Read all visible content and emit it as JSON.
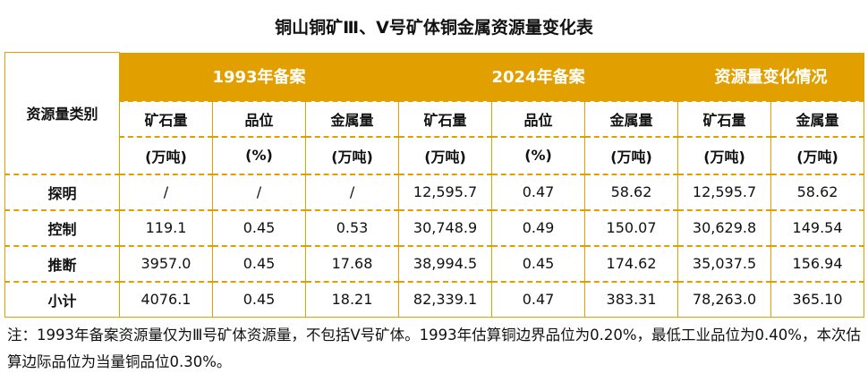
{
  "title": "铜山铜矿Ⅲ、Ⅴ号矿体铜金属资源量变化表",
  "header": {
    "category": "资源量类别",
    "groups": [
      "1993年备案",
      "2024年备案",
      "资源量变化情况"
    ],
    "columns": [
      "矿石量",
      "品位",
      "金属量",
      "矿石量",
      "品位",
      "金属量",
      "矿石量",
      "金属量"
    ],
    "units": [
      "(万吨)",
      "(%)",
      "(万吨)",
      "(万吨)",
      "(%)",
      "(万吨)",
      "(万吨)",
      "(万吨)"
    ]
  },
  "rows": [
    {
      "label": "探明",
      "values": [
        "/",
        "/",
        "/",
        "12,595.7",
        "0.47",
        "58.62",
        "12,595.7",
        "58.62"
      ]
    },
    {
      "label": "控制",
      "values": [
        "119.1",
        "0.45",
        "0.53",
        "30,748.9",
        "0.49",
        "150.07",
        "30,629.8",
        "149.54"
      ]
    },
    {
      "label": "推断",
      "values": [
        "3957.0",
        "0.45",
        "17.68",
        "38,994.5",
        "0.45",
        "174.62",
        "35,037.5",
        "156.94"
      ]
    },
    {
      "label": "小计",
      "values": [
        "4076.1",
        "0.45",
        "18.21",
        "82,339.1",
        "0.47",
        "383.31",
        "78,263.0",
        "365.10"
      ]
    }
  ],
  "note": "注：1993年备案资源量仅为Ⅲ号矿体资源量，不包括Ⅴ号矿体。1993年估算铜边界品位为0.20%，最低工业品位为0.40%，本次估算边际品位为当量铜品位0.30%。",
  "colors": {
    "accent": "#E2A000"
  }
}
